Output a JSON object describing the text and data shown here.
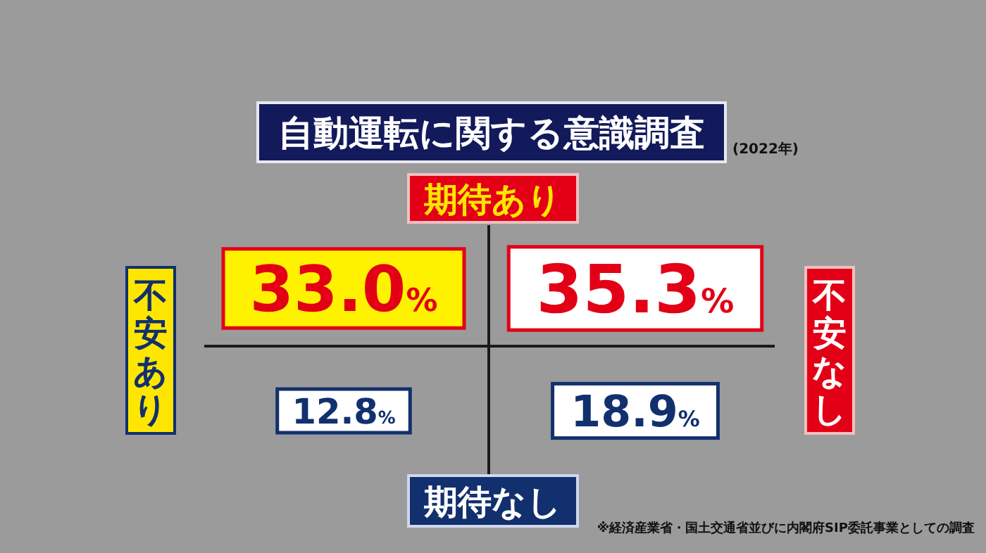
{
  "chart_data": {
    "type": "heatmap",
    "title": "自動運転に関する意識調査",
    "subtitle": "(2022年)",
    "categories": [
      "不安あり",
      "不安なし"
    ],
    "y_categories": [
      "期待あり",
      "期待なし"
    ],
    "cells": [
      [
        33.0,
        35.3
      ],
      [
        12.8,
        18.9
      ]
    ],
    "cell_labels": [
      [
        "33.0%",
        "35.3%"
      ],
      [
        "12.8%",
        "18.9%"
      ]
    ],
    "annotations": [
      "※経済産業省・国土交通省並びに内閣府SIP委託事業としての調査"
    ]
  }
}
